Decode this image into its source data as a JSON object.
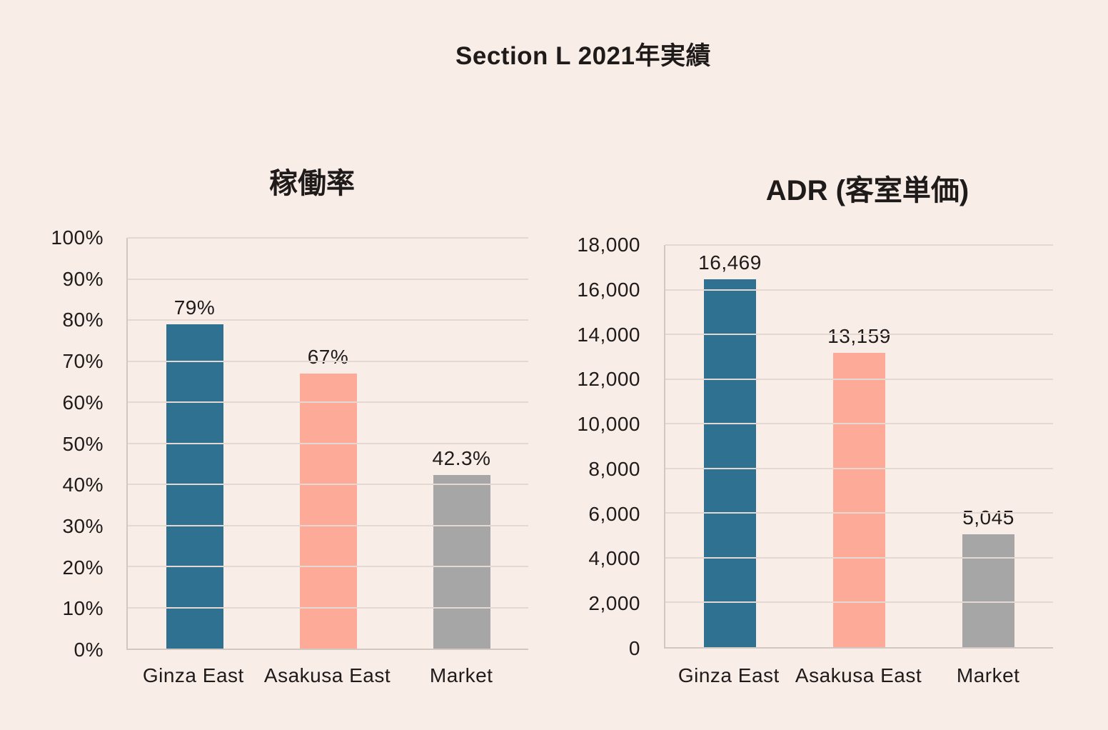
{
  "page": {
    "title": "Section L 2021年実績",
    "background": "#f8ede7",
    "text_color": "#1f1b1a"
  },
  "colors": {
    "bar_colors": [
      "#2e7191",
      "#fdaa98",
      "#a6a6a6"
    ],
    "gridline": "#e3d8d2",
    "axis": "#d2c7c1"
  },
  "chart_data": [
    {
      "type": "bar",
      "title": "稼働率",
      "categories": [
        "Ginza East",
        "Asakusa East",
        "Market"
      ],
      "values": [
        79,
        67,
        42.3
      ],
      "value_labels": [
        "79%",
        "67%",
        "42.3%"
      ],
      "ymax": 100,
      "ylim": [
        0,
        100
      ],
      "yticks_top_to_bottom": [
        "100%",
        "90%",
        "80%",
        "70%",
        "60%",
        "50%",
        "40%",
        "30%",
        "20%",
        "10%",
        "0%"
      ],
      "xlabel": "",
      "ylabel": "",
      "grid": true,
      "legend": false
    },
    {
      "type": "bar",
      "title": "ADR (客室単価)",
      "categories": [
        "Ginza East",
        "Asakusa East",
        "Market"
      ],
      "values": [
        16469,
        13159,
        5045
      ],
      "value_labels": [
        "16,469",
        "13,159",
        "5,045"
      ],
      "ymax": 18000,
      "ylim": [
        0,
        18000
      ],
      "yticks_top_to_bottom": [
        "18,000",
        "16,000",
        "14,000",
        "12,000",
        "10,000",
        "8,000",
        "6,000",
        "4,000",
        "2,000",
        "0"
      ],
      "xlabel": "",
      "ylabel": "",
      "grid": true,
      "legend": false
    }
  ]
}
